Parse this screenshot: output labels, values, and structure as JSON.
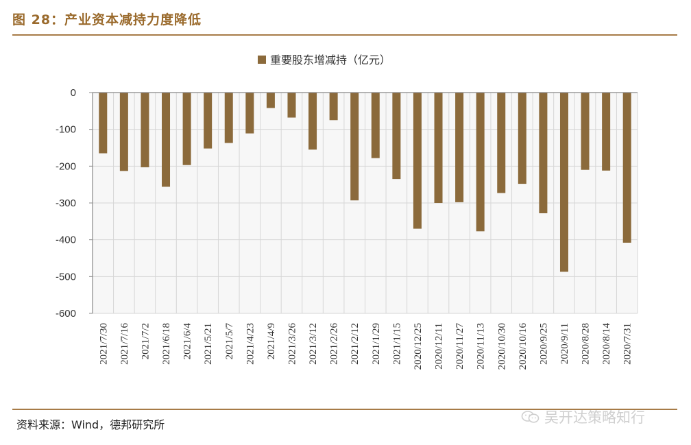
{
  "header": {
    "figure_title": "图 28：产业资本减持力度降低"
  },
  "footer": {
    "source": "资料来源：Wind，德邦研究所",
    "watermark": "吴开达策略知行"
  },
  "colors": {
    "bar": "#8b6a3b",
    "accent": "#a77b47",
    "plot_background": "#f7f7f7",
    "grid": "#d6d6d6"
  },
  "chart_data": {
    "type": "bar",
    "legend": "重要股东增减持（亿元）",
    "legend_position": "top-center",
    "grid": true,
    "categories": [
      "2021/7/30",
      "2021/7/16",
      "2021/7/2",
      "2021/6/18",
      "2021/6/4",
      "2021/5/21",
      "2021/5/7",
      "2021/4/23",
      "2021/4/9",
      "2021/3/26",
      "2021/3/12",
      "2021/2/26",
      "2021/2/12",
      "2021/1/29",
      "2021/1/15",
      "2020/12/25",
      "2020/12/11",
      "2020/11/27",
      "2020/11/13",
      "2020/10/30",
      "2020/10/16",
      "2020/9/25",
      "2020/9/11",
      "2020/8/28",
      "2020/8/14",
      "2020/7/31"
    ],
    "series": [
      {
        "name": "重要股东增减持（亿元）",
        "values": [
          -165,
          -213,
          -203,
          -256,
          -197,
          -152,
          -137,
          -111,
          -42,
          -68,
          -155,
          -75,
          -293,
          -178,
          -235,
          -370,
          -300,
          -298,
          -377,
          -273,
          -248,
          -328,
          -487,
          -210,
          -212,
          -408
        ]
      }
    ],
    "ylim": [
      -600,
      0
    ],
    "yticks": [
      0,
      -100,
      -200,
      -300,
      -400,
      -500,
      -600
    ],
    "xlabel": "",
    "ylabel": ""
  }
}
